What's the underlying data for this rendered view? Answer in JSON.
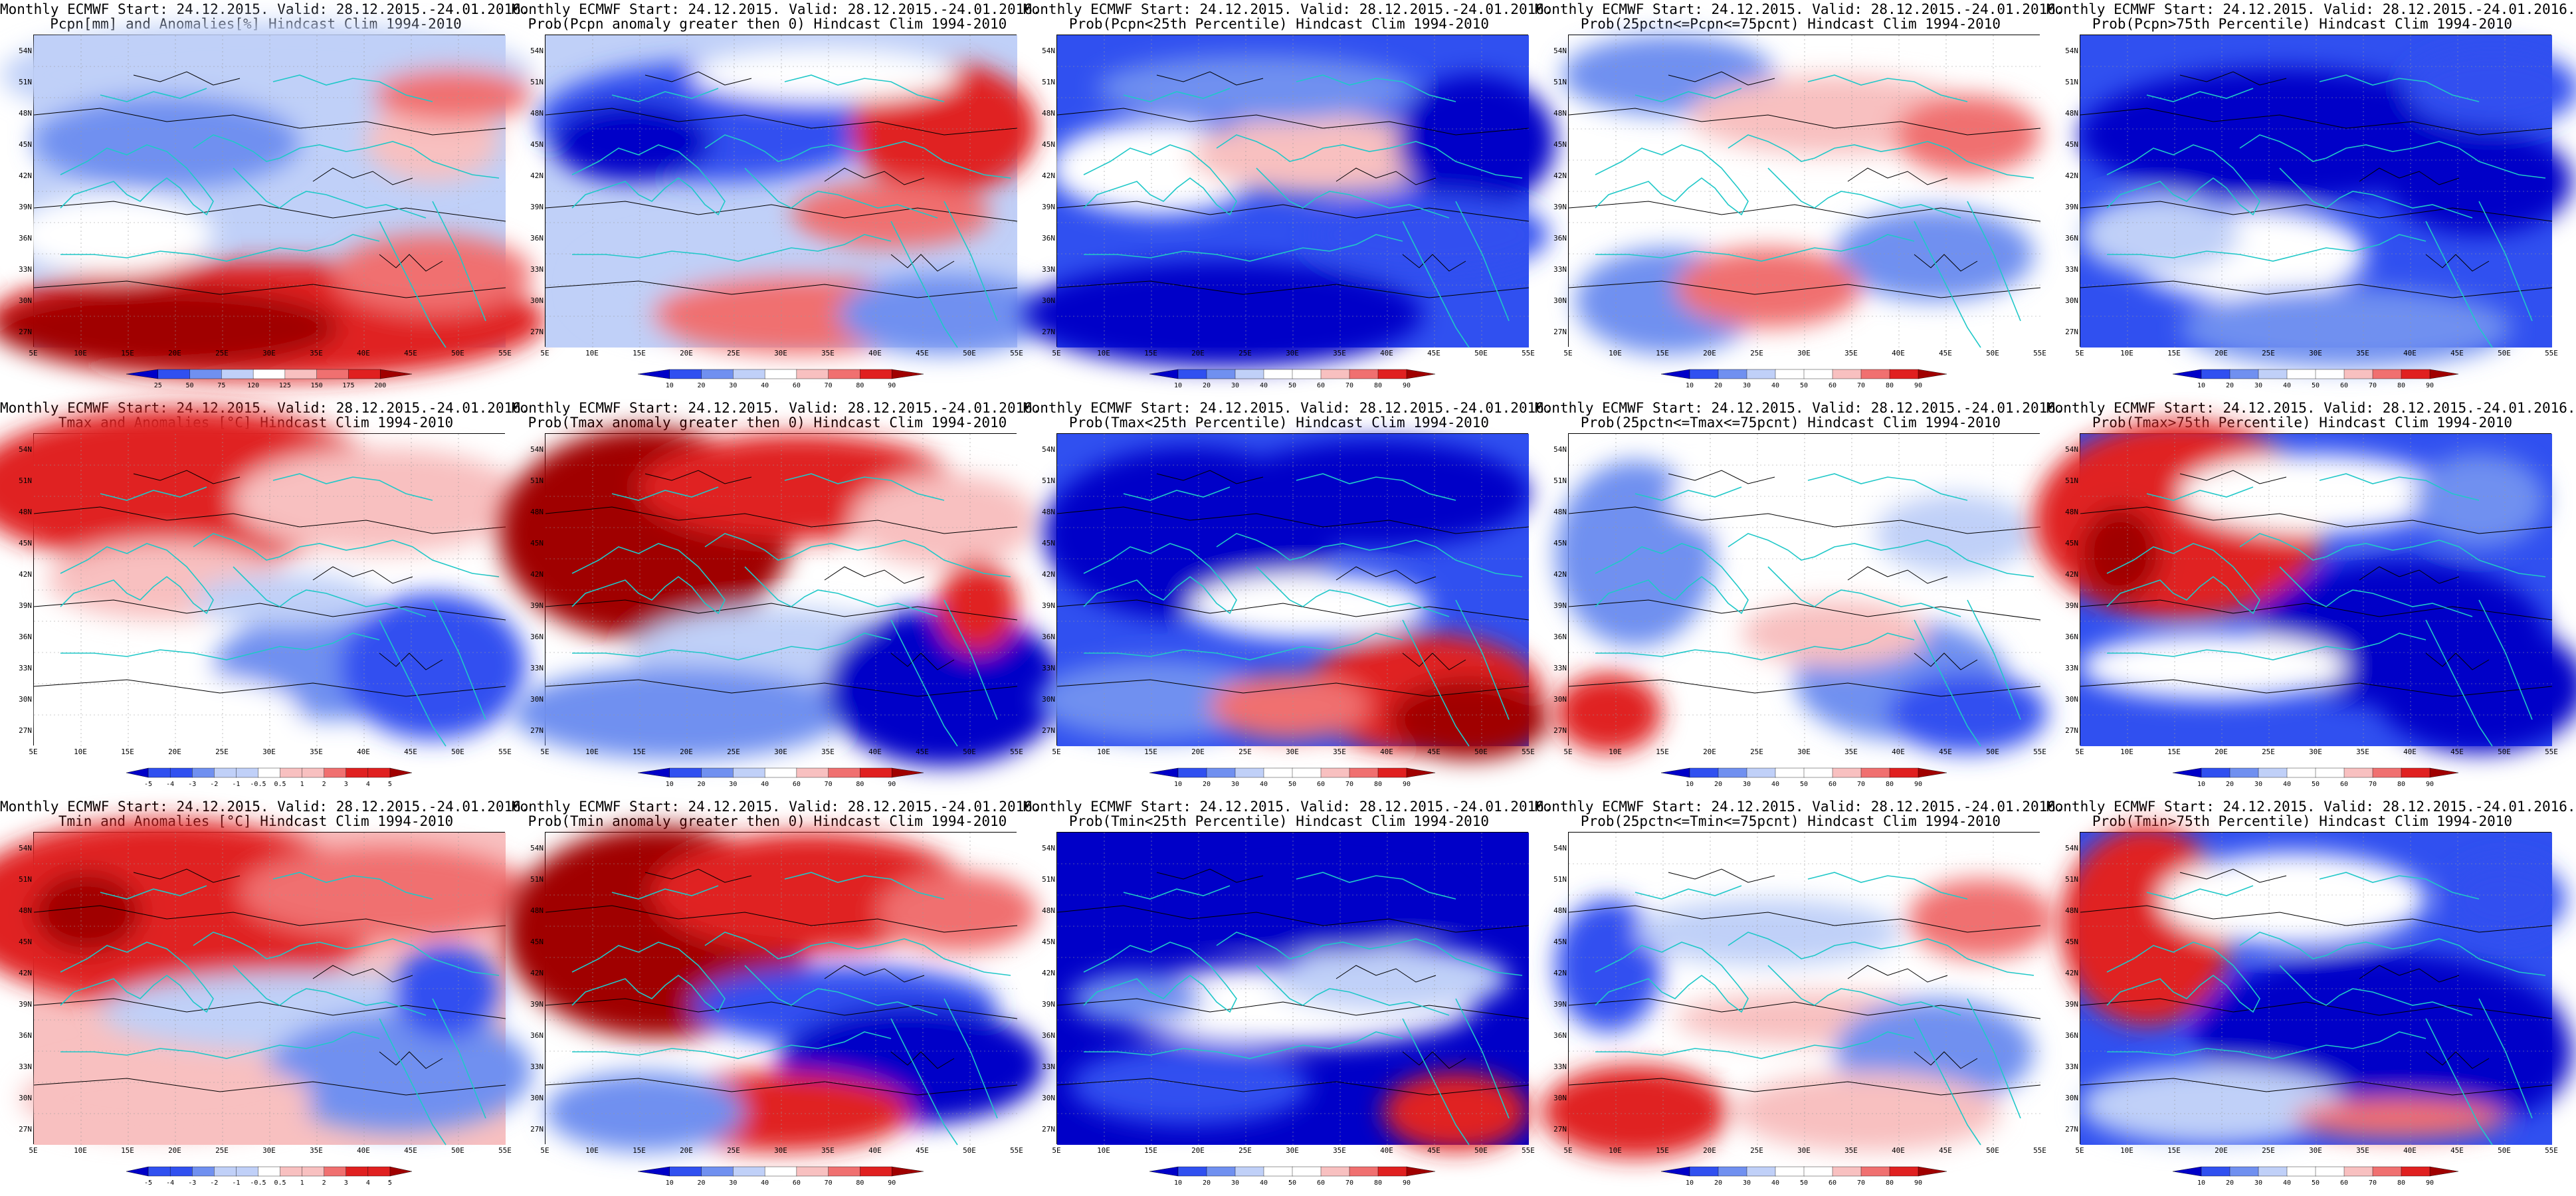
{
  "figure": {
    "region": {
      "lon_range": [
        5,
        55
      ],
      "lat_range": [
        25,
        55
      ]
    },
    "lat_labels": [
      "54N",
      "51N",
      "48N",
      "45N",
      "42N",
      "39N",
      "36N",
      "33N",
      "30N",
      "27N"
    ],
    "lon_labels": [
      "5E",
      "10E",
      "15E",
      "20E",
      "25E",
      "30E",
      "35E",
      "40E",
      "45E",
      "50E",
      "55E"
    ],
    "colors": {
      "deep_blue": "#0000c8",
      "blue": "#3050f0",
      "mid_blue": "#7090f0",
      "light_blue": "#c0d0f8",
      "white": "#ffffff",
      "light_red": "#f8c0c0",
      "mid_red": "#f07070",
      "red": "#e02020",
      "deep_red": "#a00000",
      "coast": "#20c8c8",
      "contour": "#000000"
    }
  },
  "scales": {
    "pcpn_anom": [
      "25",
      "50",
      "75",
      "120",
      "125",
      "150",
      "175",
      "200"
    ],
    "temp_anom": [
      "-5",
      "-4",
      "-3",
      "-2",
      "-1",
      "-0.5",
      "0.5",
      "1",
      "2",
      "3",
      "4",
      "5"
    ],
    "prob_a": [
      "10",
      "20",
      "30",
      "40",
      "60",
      "70",
      "80",
      "90"
    ],
    "prob_b": [
      "10",
      "20",
      "30",
      "40",
      "50",
      "60",
      "70",
      "80",
      "90"
    ]
  },
  "panels": [
    {
      "title1": "Monthly ECMWF Start: 24.12.2015. Valid: 28.12.2015.-24.01.2016.",
      "title2": "Pcpn[mm] and Anomalies[%] Hindcast Clim 1994-2010",
      "scale": "pcpn_anom",
      "pattern": "pcpn"
    },
    {
      "title1": "Monthly ECMWF Start: 24.12.2015. Valid: 28.12.2015.-24.01.2016.",
      "title2": "Prob(Pcpn anomaly greater then 0) Hindcast Clim 1994-2010",
      "scale": "prob_a",
      "pattern": "pcpn_prob"
    },
    {
      "title1": "Monthly ECMWF Start: 24.12.2015. Valid: 28.12.2015.-24.01.2016.",
      "title2": "Prob(Pcpn<25th Percentile) Hindcast Clim 1994-2010",
      "scale": "prob_b",
      "pattern": "pcpn_low"
    },
    {
      "title1": "Monthly ECMWF Start: 24.12.2015. Valid: 28.12.2015.-24.01.2016.",
      "title2": "Prob(25pctn<=Pcpn<=75pcnt) Hindcast Clim 1994-2010",
      "scale": "prob_b",
      "pattern": "pcpn_mid"
    },
    {
      "title1": "Monthly ECMWF Start: 24.12.2015. Valid: 28.12.2015.-24.01.2016.",
      "title2": "Prob(Pcpn>75th Percentile) Hindcast Clim 1994-2010",
      "scale": "prob_b",
      "pattern": "pcpn_high"
    },
    {
      "title1": "Monthly ECMWF Start: 24.12.2015. Valid: 28.12.2015.-24.01.2016.",
      "title2": "Tmax and Anomalies [°C] Hindcast Clim 1994-2010",
      "scale": "temp_anom",
      "pattern": "tmax"
    },
    {
      "title1": "Monthly ECMWF Start: 24.12.2015. Valid: 28.12.2015.-24.01.2016.",
      "title2": "Prob(Tmax anomaly greater then 0) Hindcast Clim 1994-2010",
      "scale": "prob_a",
      "pattern": "tmax_prob"
    },
    {
      "title1": "Monthly ECMWF Start: 24.12.2015. Valid: 28.12.2015.-24.01.2016.",
      "title2": "Prob(Tmax<25th Percentile) Hindcast Clim 1994-2010",
      "scale": "prob_b",
      "pattern": "tmax_low"
    },
    {
      "title1": "Monthly ECMWF Start: 24.12.2015. Valid: 28.12.2015.-24.01.2016.",
      "title2": "Prob(25pctn<=Tmax<=75pcnt) Hindcast Clim 1994-2010",
      "scale": "prob_b",
      "pattern": "tmax_mid"
    },
    {
      "title1": "Monthly ECMWF Start: 24.12.2015. Valid: 28.12.2015.-24.01.2016.",
      "title2": "Prob(Tmax>75th Percentile) Hindcast Clim 1994-2010",
      "scale": "prob_b",
      "pattern": "tmax_high"
    },
    {
      "title1": "Monthly ECMWF Start: 24.12.2015. Valid: 28.12.2015.-24.01.2016.",
      "title2": "Tmin and Anomalies [°C] Hindcast Clim 1994-2010",
      "scale": "temp_anom",
      "pattern": "tmin"
    },
    {
      "title1": "Monthly ECMWF Start: 24.12.2015. Valid: 28.12.2015.-24.01.2016.",
      "title2": "Prob(Tmin anomaly greater then 0) Hindcast Clim 1994-2010",
      "scale": "prob_a",
      "pattern": "tmin_prob"
    },
    {
      "title1": "Monthly ECMWF Start: 24.12.2015. Valid: 28.12.2015.-24.01.2016.",
      "title2": "Prob(Tmin<25th Percentile) Hindcast Clim 1994-2010",
      "scale": "prob_b",
      "pattern": "tmin_low"
    },
    {
      "title1": "Monthly ECMWF Start: 24.12.2015. Valid: 28.12.2015.-24.01.2016.",
      "title2": "Prob(25pctn<=Tmin<=75pcnt) Hindcast Clim 1994-2010",
      "scale": "prob_b",
      "pattern": "tmin_mid"
    },
    {
      "title1": "Monthly ECMWF Start: 24.12.2015. Valid: 28.12.2015.-24.01.2016.",
      "title2": "Prob(Tmin>75th Percentile) Hindcast Clim 1994-2010",
      "scale": "prob_b",
      "pattern": "tmin_high"
    }
  ]
}
